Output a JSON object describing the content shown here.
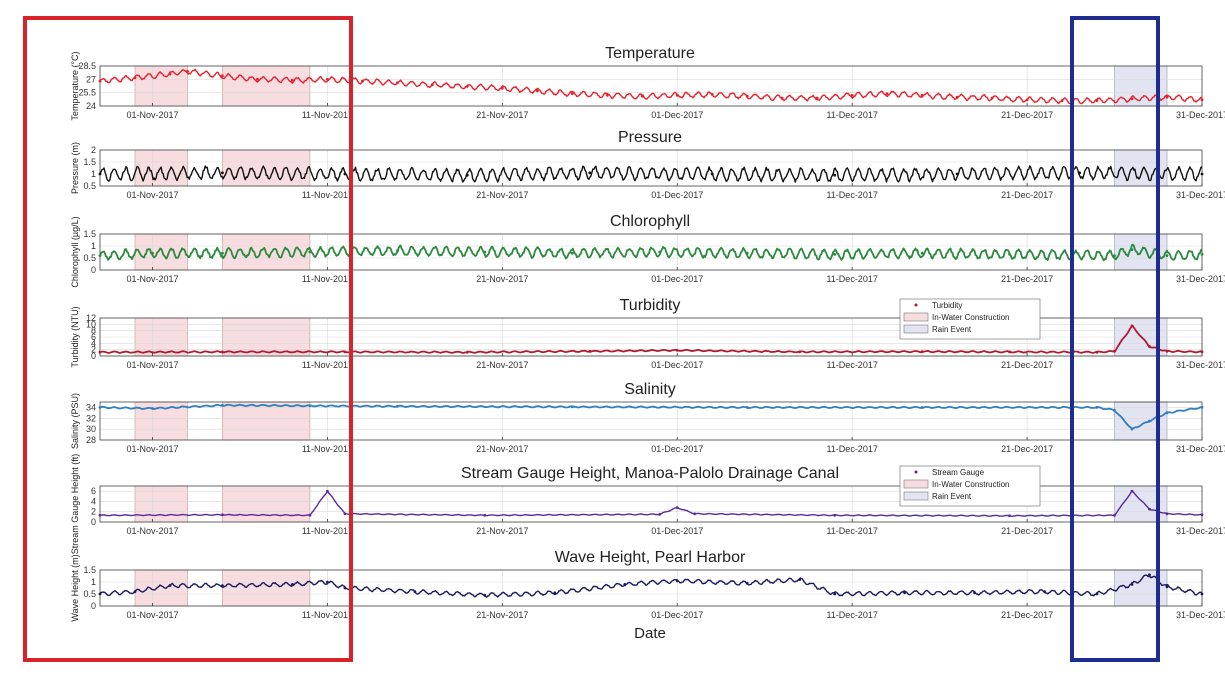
{
  "figure": {
    "xlabel": "Date",
    "x_ticks": [
      "01-Nov-2017",
      "11-Nov-2017",
      "21-Nov-2017",
      "01-Dec-2017",
      "11-Dec-2017",
      "21-Dec-2017",
      "31-Dec-2017"
    ],
    "x_range": [
      "2017-10-29",
      "2017-12-31"
    ],
    "shaded_spans": {
      "in_water_construction": [
        [
          "2017-10-31",
          "2017-11-03"
        ],
        [
          "2017-11-05",
          "2017-11-10"
        ]
      ],
      "rain_event": [
        [
          "2017-12-26",
          "2017-12-29"
        ]
      ]
    },
    "colors": {
      "construction_fill": "#f7dde0",
      "rain_fill": "#e2e4f1",
      "red_box": "#d8232a",
      "blue_box": "#1f2c8f"
    },
    "grid": true
  },
  "legend_1": {
    "items": [
      "Turbidity",
      "In-Water Construction",
      "Rain Event"
    ]
  },
  "legend_2": {
    "items": [
      "Stream Gauge",
      "In-Water Construction",
      "Rain Event"
    ]
  },
  "chart_data": [
    {
      "type": "line",
      "title": "Temperature",
      "ylabel": "Temperature (°C)",
      "ylim": [
        24,
        28.5
      ],
      "yticks": [
        "24",
        "25.5",
        "27",
        "28.5"
      ],
      "color": "#e8202a",
      "series": [
        {
          "values": [
            [
              "2017-10-29",
              26.8
            ],
            [
              "2017-10-31",
              27.2
            ],
            [
              "2017-11-02",
              27.6
            ],
            [
              "2017-11-03",
              27.9
            ],
            [
              "2017-11-05",
              27.4
            ],
            [
              "2017-11-07",
              27.0
            ],
            [
              "2017-11-09",
              26.9
            ],
            [
              "2017-11-11",
              27.0
            ],
            [
              "2017-11-13",
              26.8
            ],
            [
              "2017-11-15",
              26.6
            ],
            [
              "2017-11-17",
              26.4
            ],
            [
              "2017-11-19",
              26.2
            ],
            [
              "2017-11-21",
              26.0
            ],
            [
              "2017-11-23",
              25.7
            ],
            [
              "2017-11-25",
              25.4
            ],
            [
              "2017-11-27",
              25.2
            ],
            [
              "2017-11-29",
              25.1
            ],
            [
              "2017-12-01",
              25.2
            ],
            [
              "2017-12-03",
              25.3
            ],
            [
              "2017-12-05",
              25.1
            ],
            [
              "2017-12-07",
              24.9
            ],
            [
              "2017-12-09",
              24.9
            ],
            [
              "2017-12-11",
              25.2
            ],
            [
              "2017-12-13",
              25.4
            ],
            [
              "2017-12-15",
              25.2
            ],
            [
              "2017-12-17",
              25.0
            ],
            [
              "2017-12-19",
              24.9
            ],
            [
              "2017-12-21",
              24.7
            ],
            [
              "2017-12-23",
              24.6
            ],
            [
              "2017-12-25",
              24.6
            ],
            [
              "2017-12-27",
              24.8
            ],
            [
              "2017-12-29",
              25.0
            ],
            [
              "2017-12-31",
              24.7
            ]
          ]
        }
      ]
    },
    {
      "type": "line",
      "title": "Pressure",
      "ylabel": "Pressure (m)",
      "ylim": [
        0.5,
        2
      ],
      "yticks": [
        "0.5",
        "1",
        "1.5",
        "2"
      ],
      "color": "#111111",
      "series": [
        {
          "values": [
            [
              "2017-10-29",
              1.0
            ],
            [
              "2017-11-05",
              1.05
            ],
            [
              "2017-11-12",
              1.0
            ],
            [
              "2017-11-19",
              0.95
            ],
            [
              "2017-11-26",
              1.05
            ],
            [
              "2017-12-03",
              1.0
            ],
            [
              "2017-12-10",
              0.95
            ],
            [
              "2017-12-17",
              1.0
            ],
            [
              "2017-12-24",
              1.05
            ],
            [
              "2017-12-31",
              1.0
            ]
          ]
        }
      ]
    },
    {
      "type": "scatter",
      "title": "Chlorophyll",
      "ylabel": "Chlorophyll (µg/L)",
      "ylim": [
        0,
        1.5
      ],
      "yticks": [
        "0",
        "0.5",
        "1",
        "1.5"
      ],
      "color": "#2b8a3e",
      "series": [
        {
          "values": [
            [
              "2017-10-29",
              0.6
            ],
            [
              "2017-11-01",
              0.7
            ],
            [
              "2017-11-05",
              0.7
            ],
            [
              "2017-11-10",
              0.75
            ],
            [
              "2017-11-15",
              0.8
            ],
            [
              "2017-11-20",
              0.75
            ],
            [
              "2017-11-25",
              0.7
            ],
            [
              "2017-11-30",
              0.75
            ],
            [
              "2017-12-05",
              0.7
            ],
            [
              "2017-12-10",
              0.65
            ],
            [
              "2017-12-15",
              0.7
            ],
            [
              "2017-12-20",
              0.65
            ],
            [
              "2017-12-26",
              0.6
            ],
            [
              "2017-12-27",
              0.85
            ],
            [
              "2017-12-29",
              0.6
            ],
            [
              "2017-12-31",
              0.65
            ]
          ]
        }
      ]
    },
    {
      "type": "scatter",
      "title": "Turbidity",
      "ylabel": "Turbidity (NTU)",
      "ylim": [
        0,
        12
      ],
      "yticks": [
        "0",
        "2",
        "4",
        "6",
        "8",
        "10",
        "12"
      ],
      "color": "#b0192f",
      "series": [
        {
          "name": "Turbidity",
          "values": [
            [
              "2017-10-29",
              1.2
            ],
            [
              "2017-11-05",
              1.3
            ],
            [
              "2017-11-12",
              1.3
            ],
            [
              "2017-11-19",
              1.2
            ],
            [
              "2017-11-26",
              1.5
            ],
            [
              "2017-12-01",
              1.8
            ],
            [
              "2017-12-08",
              1.3
            ],
            [
              "2017-12-15",
              1.4
            ],
            [
              "2017-12-20",
              1.3
            ],
            [
              "2017-12-25",
              1.2
            ],
            [
              "2017-12-26",
              1.5
            ],
            [
              "2017-12-27",
              9.5
            ],
            [
              "2017-12-28",
              3.0
            ],
            [
              "2017-12-29",
              1.5
            ],
            [
              "2017-12-31",
              1.3
            ]
          ]
        }
      ]
    },
    {
      "type": "scatter",
      "title": "Salinity",
      "ylabel": "Salinity (PSU)",
      "ylim": [
        28,
        35
      ],
      "yticks": [
        "28",
        "30",
        "32",
        "34"
      ],
      "color": "#2f7fc1",
      "series": [
        {
          "values": [
            [
              "2017-10-29",
              34.0
            ],
            [
              "2017-11-01",
              33.8
            ],
            [
              "2017-11-05",
              34.4
            ],
            [
              "2017-11-10",
              34.3
            ],
            [
              "2017-11-15",
              34.2
            ],
            [
              "2017-11-25",
              34.1
            ],
            [
              "2017-12-05",
              34.0
            ],
            [
              "2017-12-15",
              34.0
            ],
            [
              "2017-12-25",
              34.0
            ],
            [
              "2017-12-26",
              33.5
            ],
            [
              "2017-12-27",
              30.0
            ],
            [
              "2017-12-28",
              31.5
            ],
            [
              "2017-12-29",
              33.0
            ],
            [
              "2017-12-31",
              34.0
            ]
          ]
        }
      ]
    },
    {
      "type": "line",
      "title": "Stream Gauge Height, Manoa-Palolo Drainage Canal",
      "ylabel": "Stream Gauge Height (ft)",
      "ylim": [
        0,
        7
      ],
      "yticks": [
        "0",
        "2",
        "4",
        "6"
      ],
      "color": "#5a2a9c",
      "series": [
        {
          "name": "Stream Gauge",
          "values": [
            [
              "2017-10-29",
              1.3
            ],
            [
              "2017-11-05",
              1.4
            ],
            [
              "2017-11-10",
              1.3
            ],
            [
              "2017-11-11",
              6.0
            ],
            [
              "2017-11-12",
              1.6
            ],
            [
              "2017-11-20",
              1.3
            ],
            [
              "2017-11-30",
              1.5
            ],
            [
              "2017-12-01",
              2.8
            ],
            [
              "2017-12-02",
              1.6
            ],
            [
              "2017-12-10",
              1.3
            ],
            [
              "2017-12-20",
              1.2
            ],
            [
              "2017-12-26",
              1.3
            ],
            [
              "2017-12-27",
              6.0
            ],
            [
              "2017-12-28",
              2.5
            ],
            [
              "2017-12-29",
              1.6
            ],
            [
              "2017-12-31",
              1.4
            ]
          ]
        }
      ]
    },
    {
      "type": "line",
      "title": "Wave Height, Pearl Harbor",
      "ylabel": "Wave Height (m)",
      "ylim": [
        0,
        1.5
      ],
      "yticks": [
        "0",
        "0.5",
        "1",
        "1.5"
      ],
      "color": "#1a1a5e",
      "series": [
        {
          "values": [
            [
              "2017-10-29",
              0.5
            ],
            [
              "2017-10-31",
              0.6
            ],
            [
              "2017-11-02",
              0.85
            ],
            [
              "2017-11-05",
              0.85
            ],
            [
              "2017-11-09",
              0.9
            ],
            [
              "2017-11-11",
              1.0
            ],
            [
              "2017-11-12",
              0.75
            ],
            [
              "2017-11-16",
              0.6
            ],
            [
              "2017-11-20",
              0.45
            ],
            [
              "2017-11-24",
              0.55
            ],
            [
              "2017-11-28",
              0.9
            ],
            [
              "2017-12-01",
              1.05
            ],
            [
              "2017-12-05",
              0.95
            ],
            [
              "2017-12-08",
              1.1
            ],
            [
              "2017-12-10",
              0.5
            ],
            [
              "2017-12-14",
              0.55
            ],
            [
              "2017-12-18",
              0.55
            ],
            [
              "2017-12-22",
              0.6
            ],
            [
              "2017-12-25",
              0.5
            ],
            [
              "2017-12-27",
              0.9
            ],
            [
              "2017-12-28",
              1.3
            ],
            [
              "2017-12-29",
              0.8
            ],
            [
              "2017-12-31",
              0.5
            ]
          ]
        }
      ]
    }
  ]
}
